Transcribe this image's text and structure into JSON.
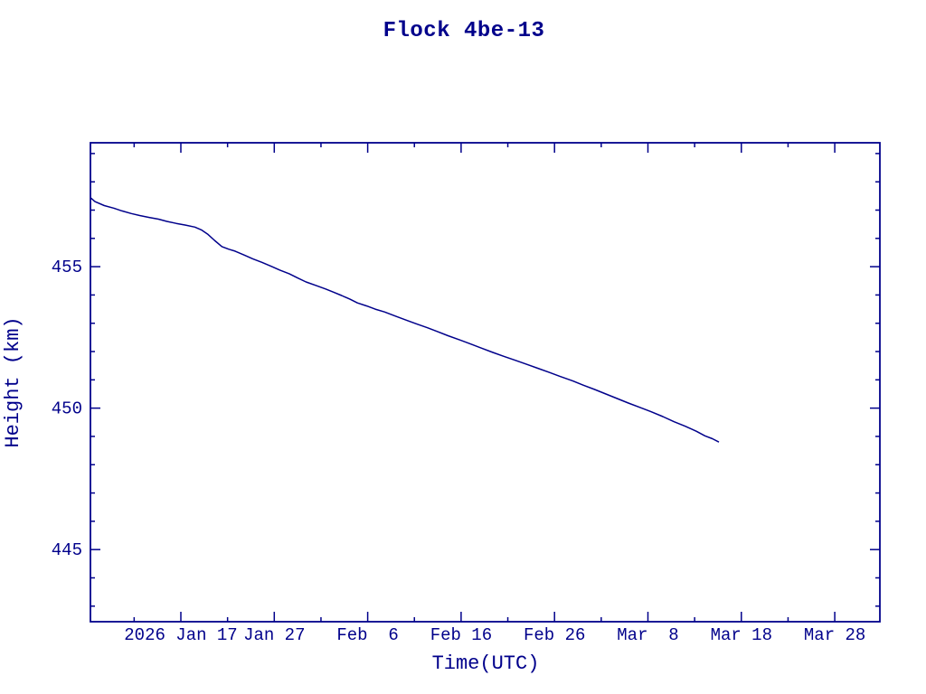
{
  "colors": {
    "ink": "#00008B",
    "background": "#ffffff"
  },
  "chart_data": {
    "type": "line",
    "title": "Flock 4be-13",
    "xlabel": "Time(UTC)",
    "ylabel": "Height (km)",
    "x_unit": "days relative to 2026 Jan 17 (UTC)",
    "xlim": [
      -9.68,
      74.83
    ],
    "ylim": [
      442.45,
      459.38
    ],
    "grid": false,
    "frame_ticks_mirrored": true,
    "legend": "none",
    "x_major_ticks": [
      {
        "day": 0,
        "label": "2026 Jan 17"
      },
      {
        "day": 10,
        "label": "Jan 27"
      },
      {
        "day": 20,
        "label": "Feb  6"
      },
      {
        "day": 30,
        "label": "Feb 16"
      },
      {
        "day": 40,
        "label": "Feb 26"
      },
      {
        "day": 50,
        "label": "Mar  8"
      },
      {
        "day": 60,
        "label": "Mar 18"
      },
      {
        "day": 70,
        "label": "Mar 28"
      }
    ],
    "x_minor_ticks": [
      -5,
      5,
      15,
      25,
      35,
      45,
      55,
      65
    ],
    "y_major_ticks": [
      {
        "value": 445,
        "label": "445"
      },
      {
        "value": 450,
        "label": "450"
      },
      {
        "value": 455,
        "label": "455"
      }
    ],
    "y_minor_ticks": [
      443,
      444,
      446,
      447,
      448,
      449,
      451,
      452,
      453,
      454,
      456,
      457,
      458,
      459
    ],
    "series": [
      {
        "name": "orbit-height",
        "color": "#00008B",
        "points": [
          [
            -9.68,
            457.44
          ],
          [
            -9.2,
            457.3
          ],
          [
            -8.2,
            457.16
          ],
          [
            -7.2,
            457.07
          ],
          [
            -6.3,
            456.97
          ],
          [
            -5.3,
            456.88
          ],
          [
            -4.4,
            456.81
          ],
          [
            -3.4,
            456.74
          ],
          [
            -2.4,
            456.68
          ],
          [
            -1.5,
            456.6
          ],
          [
            -0.5,
            456.53
          ],
          [
            0.5,
            456.47
          ],
          [
            1.5,
            456.4
          ],
          [
            2.2,
            456.3
          ],
          [
            2.9,
            456.14
          ],
          [
            3.6,
            455.93
          ],
          [
            4.4,
            455.71
          ],
          [
            5.1,
            455.62
          ],
          [
            5.8,
            455.55
          ],
          [
            6.8,
            455.41
          ],
          [
            7.7,
            455.28
          ],
          [
            8.7,
            455.15
          ],
          [
            9.7,
            455.01
          ],
          [
            10.6,
            454.88
          ],
          [
            11.6,
            454.75
          ],
          [
            12.5,
            454.6
          ],
          [
            13.4,
            454.46
          ],
          [
            14.5,
            454.33
          ],
          [
            15.5,
            454.21
          ],
          [
            16.4,
            454.09
          ],
          [
            17.2,
            453.98
          ],
          [
            18.1,
            453.85
          ],
          [
            18.9,
            453.72
          ],
          [
            19.9,
            453.61
          ],
          [
            20.8,
            453.5
          ],
          [
            21.8,
            453.4
          ],
          [
            23.0,
            453.25
          ],
          [
            24.2,
            453.1
          ],
          [
            25.3,
            452.97
          ],
          [
            26.4,
            452.84
          ],
          [
            27.5,
            452.7
          ],
          [
            28.6,
            452.56
          ],
          [
            29.8,
            452.42
          ],
          [
            31.0,
            452.27
          ],
          [
            32.2,
            452.12
          ],
          [
            33.4,
            451.97
          ],
          [
            34.6,
            451.83
          ],
          [
            35.8,
            451.69
          ],
          [
            37.0,
            451.55
          ],
          [
            38.2,
            451.41
          ],
          [
            39.4,
            451.27
          ],
          [
            40.6,
            451.12
          ],
          [
            41.9,
            450.97
          ],
          [
            43.1,
            450.81
          ],
          [
            44.3,
            450.66
          ],
          [
            45.5,
            450.5
          ],
          [
            46.7,
            450.34
          ],
          [
            47.9,
            450.18
          ],
          [
            49.1,
            450.03
          ],
          [
            50.3,
            449.88
          ],
          [
            51.6,
            449.7
          ],
          [
            52.8,
            449.52
          ],
          [
            54.0,
            449.36
          ],
          [
            55.2,
            449.18
          ],
          [
            56.1,
            449.02
          ],
          [
            56.9,
            448.92
          ],
          [
            57.6,
            448.8
          ]
        ]
      }
    ]
  }
}
